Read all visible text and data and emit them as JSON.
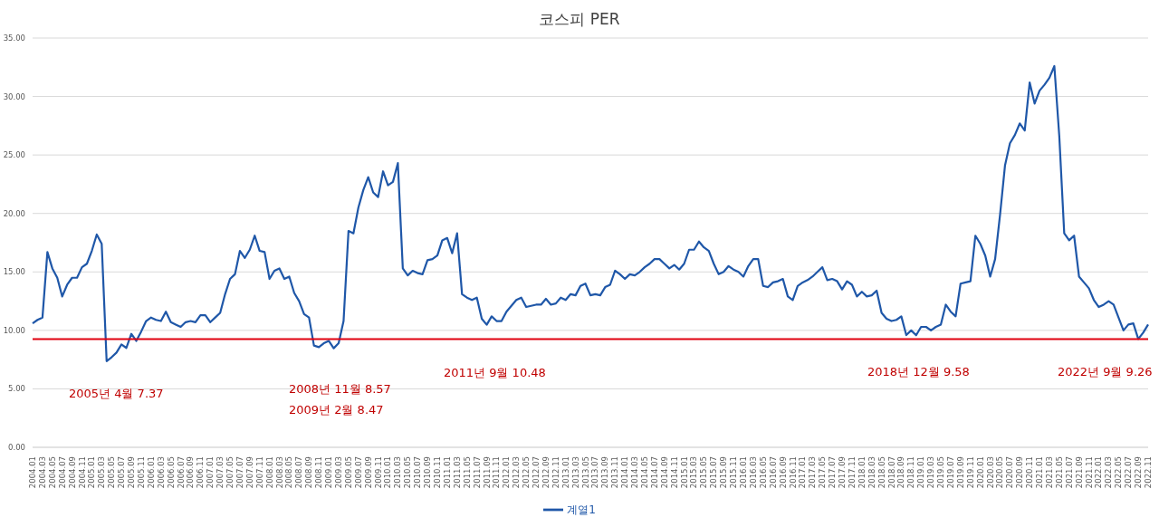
{
  "chart_data": {
    "type": "line",
    "title": "코스피 PER",
    "categories": [
      "2004.01",
      null,
      "2004.03",
      null,
      "2004.05",
      null,
      "2004.07",
      null,
      "2004.09",
      null,
      "2004.11",
      null,
      "2005.01",
      null,
      "2005.03",
      null,
      "2005.05",
      null,
      "2005.07",
      null,
      "2005.09",
      null,
      "2005.11",
      null,
      "2006.01",
      null,
      "2006.03",
      null,
      "2006.05",
      null,
      "2006.07",
      null,
      "2006.09",
      null,
      "2006.11",
      null,
      "2007.01",
      null,
      "2007.03",
      null,
      "2007.05",
      null,
      "2007.07",
      null,
      "2007.09",
      null,
      "2007.11",
      null,
      "2008.01",
      null,
      "2008.03",
      null,
      "2008.05",
      null,
      "2008.07",
      null,
      "2008.09",
      null,
      "2008.11",
      null,
      "2009.01",
      null,
      "2009.03",
      null,
      "2009.05",
      null,
      "2009.07",
      null,
      "2009.09",
      null,
      "2009.11",
      null,
      "2010.01",
      null,
      "2010.03",
      null,
      "2010.05",
      null,
      "2010.07",
      null,
      "2010.09",
      null,
      "2010.11",
      null,
      "2011.01",
      null,
      "2011.03",
      null,
      "2011.05",
      null,
      "2011.07",
      null,
      "2011.09",
      null,
      "2011.11",
      null,
      "2012.01",
      null,
      "2012.03",
      null,
      "2012.05",
      null,
      "2012.07",
      null,
      "2012.09",
      null,
      "2012.11",
      null,
      "2013.01",
      null,
      "2013.03",
      null,
      "2013.05",
      null,
      "2013.07",
      null,
      "2013.09",
      null,
      "2013.11",
      null,
      "2014.01",
      null,
      "2014.03",
      null,
      "2014.05",
      null,
      "2014.07",
      null,
      "2014.09",
      null,
      "2014.11",
      null,
      "2015.01",
      null,
      "2015.03",
      null,
      "2015.05",
      null,
      "2015.07",
      null,
      "2015.09",
      null,
      "2015.11",
      null,
      "2016.01",
      null,
      "2016.03",
      null,
      "2016.05",
      null,
      "2016.07",
      null,
      "2016.09",
      null,
      "2016.11",
      null,
      "2017.01",
      null,
      "2017.03",
      null,
      "2017.05",
      null,
      "2017.07",
      null,
      "2017.09",
      null,
      "2017.11",
      null,
      "2018.01",
      null,
      "2018.03",
      null,
      "2018.05",
      null,
      "2018.07",
      null,
      "2018.09",
      null,
      "2018.11",
      null,
      "2019.01",
      null,
      "2019.03",
      null,
      "2019.05",
      null,
      "2019.07",
      null,
      "2019.09",
      null,
      "2019.11",
      null,
      "2020.01",
      null,
      "2020.03",
      null,
      "2020.05",
      null,
      "2020.07",
      null,
      "2020.09",
      null,
      "2020.11",
      null,
      "2021.01",
      null,
      "2021.03",
      null,
      "2021.05",
      null,
      "2021.07",
      null,
      "2021.09",
      null,
      "2021.11",
      null,
      "2022.01",
      null,
      "2022.03",
      null,
      "2022.05",
      null,
      "2022.07",
      null,
      "2022.09",
      null,
      "2022.11"
    ],
    "series": [
      {
        "name": "계열1",
        "color": "#1f57a8",
        "values": [
          10.6,
          10.9,
          11.1,
          16.7,
          15.3,
          14.5,
          12.9,
          13.9,
          14.5,
          14.5,
          15.4,
          15.7,
          16.8,
          18.2,
          17.4,
          7.37,
          7.7,
          8.1,
          8.8,
          8.5,
          9.7,
          9.1,
          9.9,
          10.8,
          11.1,
          10.9,
          10.8,
          11.6,
          10.7,
          10.5,
          10.3,
          10.7,
          10.8,
          10.7,
          11.3,
          11.3,
          10.7,
          11.1,
          11.5,
          13.1,
          14.4,
          14.8,
          16.8,
          16.2,
          16.9,
          18.1,
          16.8,
          16.7,
          14.4,
          15.1,
          15.3,
          14.4,
          14.6,
          13.2,
          12.5,
          11.4,
          11.1,
          8.7,
          8.57,
          8.9,
          9.1,
          8.47,
          8.9,
          10.8,
          18.5,
          18.3,
          20.5,
          22.0,
          23.1,
          21.8,
          21.4,
          23.6,
          22.4,
          22.7,
          24.3,
          15.3,
          14.7,
          15.1,
          14.9,
          14.8,
          16.0,
          16.1,
          16.4,
          17.7,
          17.9,
          16.6,
          18.3,
          13.1,
          12.8,
          12.6,
          12.8,
          11.0,
          10.48,
          11.2,
          10.8,
          10.8,
          11.6,
          12.1,
          12.6,
          12.8,
          12.0,
          12.1,
          12.2,
          12.2,
          12.7,
          12.2,
          12.3,
          12.8,
          12.6,
          13.1,
          13.0,
          13.8,
          14.0,
          13.0,
          13.1,
          13.0,
          13.7,
          13.9,
          15.1,
          14.8,
          14.4,
          14.8,
          14.7,
          15.0,
          15.4,
          15.7,
          16.1,
          16.1,
          15.7,
          15.3,
          15.6,
          15.2,
          15.7,
          16.9,
          16.9,
          17.6,
          17.1,
          16.8,
          15.7,
          14.8,
          15.0,
          15.5,
          15.2,
          15.0,
          14.6,
          15.5,
          16.1,
          16.1,
          13.8,
          13.7,
          14.1,
          14.2,
          14.4,
          12.9,
          12.6,
          13.8,
          14.1,
          14.3,
          14.6,
          15.0,
          15.4,
          14.3,
          14.4,
          14.2,
          13.5,
          14.2,
          13.9,
          12.9,
          13.3,
          12.9,
          13.0,
          13.4,
          11.5,
          11.0,
          10.8,
          10.9,
          11.2,
          9.6,
          10.0,
          9.58,
          10.3,
          10.3,
          10.0,
          10.3,
          10.5,
          12.2,
          11.6,
          11.2,
          14.0,
          14.1,
          14.2,
          18.1,
          17.4,
          16.4,
          14.6,
          16.1,
          19.9,
          24.1,
          26.0,
          26.7,
          27.7,
          27.1,
          31.2,
          29.4,
          30.5,
          31.0,
          31.6,
          32.6,
          26.6,
          18.3,
          17.7,
          18.1,
          14.6,
          14.1,
          13.6,
          12.6,
          12.0,
          12.2,
          12.5,
          12.2,
          11.1,
          10.0,
          10.5,
          10.6,
          9.26,
          9.8,
          10.5
        ]
      }
    ],
    "ylim": [
      0,
      35
    ],
    "yticks": [
      {
        "value": 0,
        "label": "0.00"
      },
      {
        "value": 5,
        "label": "5.00"
      },
      {
        "value": 10,
        "label": "10.00"
      },
      {
        "value": 15,
        "label": "15.00"
      },
      {
        "value": 20,
        "label": "20.00"
      },
      {
        "value": 25,
        "label": "25.00"
      },
      {
        "value": 30,
        "label": "30.00"
      },
      {
        "value": 35,
        "label": "35.00"
      }
    ],
    "grid": "y",
    "legend": "bottom",
    "marker": "none",
    "line_style": "solid",
    "ref_lines": [
      {
        "axis": "y",
        "value": 9.26,
        "color": "#e0000f"
      }
    ],
    "annotations": [
      "2005년 4월 7.37",
      "2008년 11월 8.57",
      "2009년 2월 8.47",
      "2011년 9월 10.48",
      "2018년 12월 9.58",
      "2022년 9월 9.26"
    ]
  }
}
